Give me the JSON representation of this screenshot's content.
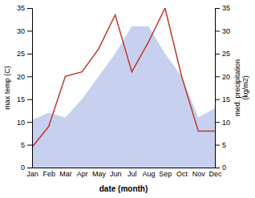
{
  "chart_data": {
    "type": "line",
    "xlabel": "date (month)",
    "ylabel": "max temp (C)",
    "y2label": "med. precipitation\n(kg/m2)",
    "categories": [
      "Jan",
      "Feb",
      "Mar",
      "Apr",
      "May",
      "Jun",
      "Jul",
      "Aug",
      "Sep",
      "Oct",
      "Nov",
      "Dec"
    ],
    "ylim": [
      0,
      35
    ],
    "yticks": [
      0,
      5,
      10,
      15,
      20,
      25,
      30,
      35
    ],
    "y2lim": [
      0,
      35
    ],
    "y2ticks": [
      0,
      5,
      10,
      15,
      20,
      25,
      30,
      35
    ],
    "grid": false,
    "series": [
      {
        "type": "area",
        "color": "#c8d0f0",
        "values": [
          10.5,
          12.0,
          11.0,
          15.0,
          20.0,
          25.0,
          31.0,
          31.0,
          25.0,
          20.0,
          11.0,
          13.0
        ]
      },
      {
        "type": "line",
        "color": "#c0392b",
        "axis": "y2",
        "values": [
          4.5,
          9.0,
          20.0,
          21.0,
          26.0,
          33.5,
          21.0,
          27.5,
          35.0,
          20.0,
          8.0,
          8.0
        ]
      }
    ]
  }
}
